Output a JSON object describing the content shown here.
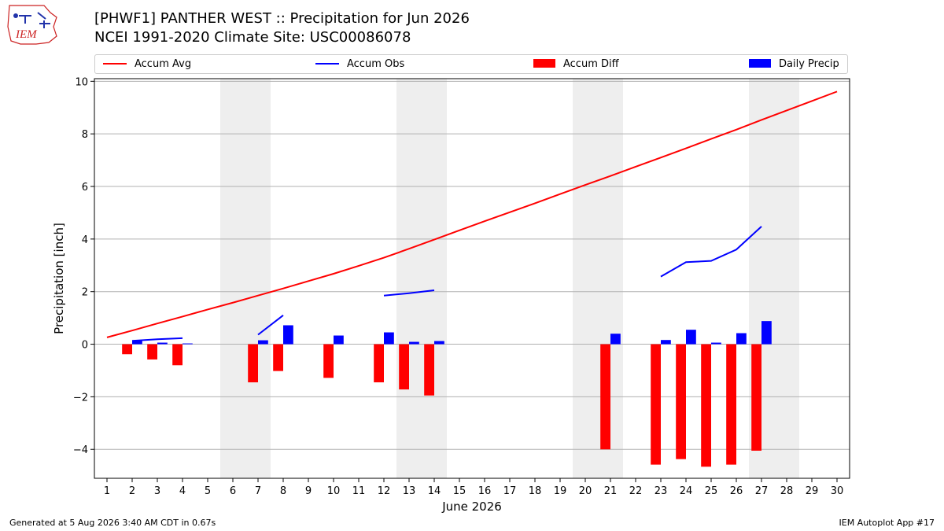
{
  "header": {
    "title_line1": "[PHWF1] PANTHER WEST :: Precipitation for Jun 2026",
    "title_line2": "NCEI 1991-2020 Climate Site: USC00086078",
    "logo_text": "IEM"
  },
  "footer": {
    "left": "Generated at 5 Aug 2026 3:40 AM CDT in 0.67s",
    "right": "IEM Autoplot App #17"
  },
  "colors": {
    "avg": "#ff0000",
    "obs": "#0000ff",
    "diff": "#ff0000",
    "daily": "#0000ff",
    "weekend": "#eeeeee",
    "grid": "#b0b0b0"
  },
  "chart_data": {
    "type": "bar",
    "xlabel": "June 2026",
    "ylabel": "Precipitation [inch]",
    "xlim": [
      0.5,
      30.5
    ],
    "ylim": [
      -5.1,
      10.1
    ],
    "yticks": [
      -4,
      -2,
      0,
      2,
      4,
      6,
      8,
      10
    ],
    "ytick_labels": [
      "−4",
      "−2",
      "0",
      "2",
      "4",
      "6",
      "8",
      "10"
    ],
    "xticks": [
      1,
      2,
      3,
      4,
      5,
      6,
      7,
      8,
      9,
      10,
      11,
      12,
      13,
      14,
      15,
      16,
      17,
      18,
      19,
      20,
      21,
      22,
      23,
      24,
      25,
      26,
      27,
      28,
      29,
      30
    ],
    "grid": "horizontal",
    "legend_position": "top",
    "weekend_bands": [
      [
        5.5,
        7.5
      ],
      [
        12.5,
        14.5
      ],
      [
        19.5,
        21.5
      ],
      [
        26.5,
        28.5
      ]
    ],
    "series": [
      {
        "name": "Accum Avg",
        "kind": "line",
        "x": [
          1,
          2,
          3,
          4,
          5,
          6,
          7,
          8,
          9,
          10,
          11,
          12,
          13,
          14,
          15,
          16,
          17,
          18,
          19,
          20,
          21,
          22,
          23,
          24,
          25,
          26,
          27,
          28,
          29,
          30
        ],
        "values": [
          0.26,
          0.52,
          0.79,
          1.05,
          1.32,
          1.58,
          1.85,
          2.12,
          2.4,
          2.68,
          2.98,
          3.29,
          3.63,
          3.98,
          4.33,
          4.68,
          5.02,
          5.36,
          5.71,
          6.06,
          6.4,
          6.75,
          7.1,
          7.45,
          7.81,
          8.16,
          8.53,
          8.89,
          9.25,
          9.61
        ]
      },
      {
        "name": "Accum Obs",
        "kind": "line",
        "segments": [
          {
            "x": [
              2,
              3,
              4
            ],
            "values": [
              0.13,
              0.19,
              0.23
            ]
          },
          {
            "x": [
              7,
              8
            ],
            "values": [
              0.36,
              1.1
            ]
          },
          {
            "x": [
              12,
              13,
              14
            ],
            "values": [
              1.85,
              1.94,
              2.05
            ]
          },
          {
            "x": [
              23,
              24,
              25,
              26,
              27
            ],
            "values": [
              2.57,
              3.12,
              3.17,
              3.6,
              4.48
            ]
          }
        ]
      },
      {
        "name": "Accum Diff",
        "kind": "bar",
        "x": [
          2,
          3,
          4,
          7,
          8,
          10,
          12,
          13,
          14,
          21,
          23,
          24,
          25,
          26,
          27
        ],
        "values": [
          -0.38,
          -0.58,
          -0.8,
          -1.45,
          -1.02,
          -1.28,
          -1.45,
          -1.72,
          -1.95,
          -4.0,
          -4.58,
          -4.37,
          -4.66,
          -4.58,
          -4.05
        ]
      },
      {
        "name": "Daily Precip",
        "kind": "bar",
        "x": [
          2,
          3,
          4,
          7,
          8,
          10,
          12,
          13,
          14,
          21,
          23,
          24,
          25,
          26,
          27
        ],
        "values": [
          0.13,
          0.06,
          0.03,
          0.15,
          0.72,
          0.33,
          0.45,
          0.09,
          0.12,
          0.4,
          0.16,
          0.55,
          0.06,
          0.42,
          0.88
        ]
      }
    ]
  }
}
